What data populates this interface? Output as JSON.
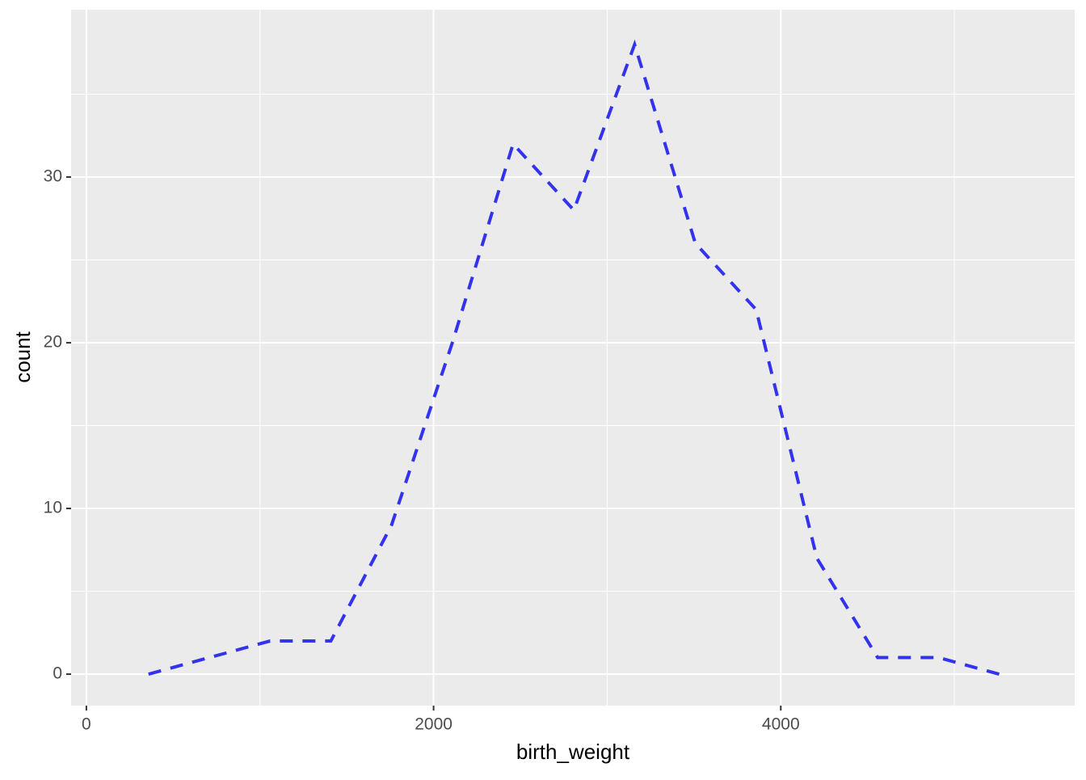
{
  "chart_data": {
    "type": "line",
    "x_label": "birth_weight",
    "y_label": "count",
    "x": [
      358,
      708,
      1058,
      1408,
      1758,
      2108,
      2458,
      2808,
      3158,
      3508,
      3858,
      4208,
      4558,
      4908,
      5258
    ],
    "series": [
      {
        "color": "#3333ee",
        "values": [
          0,
          1,
          2,
          2,
          9,
          20,
          32,
          28,
          38,
          26,
          22,
          7,
          1,
          1,
          0
        ]
      }
    ],
    "xlim": [
      -88,
      5693
    ],
    "ylim": [
      -1.9,
      40.1
    ],
    "xticks": [
      0,
      2000,
      4000
    ],
    "yticks": [
      0,
      10,
      20,
      30
    ],
    "minor_xticks": [
      1000,
      3000,
      5000
    ],
    "minor_yticks": [
      5,
      15,
      25,
      35
    ],
    "grid": true,
    "line_style": "dashed"
  }
}
